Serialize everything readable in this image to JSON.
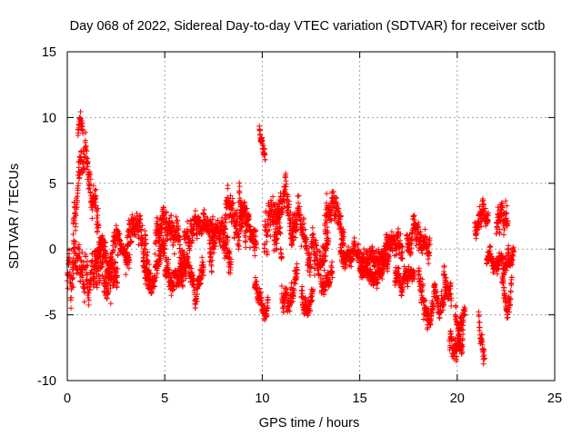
{
  "chart_data": {
    "type": "scatter",
    "title": "Day 068 of 2022, Sidereal Day-to-day VTEC variation (SDTVAR) for receiver sctb",
    "xlabel": "GPS time / hours",
    "ylabel": "SDTVAR / TECUs",
    "xlim": [
      0,
      25
    ],
    "ylim": [
      -10,
      15
    ],
    "xticks": [
      0,
      5,
      10,
      15,
      20,
      25
    ],
    "xtick_labels": [
      "0",
      "5",
      "10",
      "15",
      "20",
      "25"
    ],
    "yticks": [
      -10,
      -5,
      0,
      5,
      10,
      15
    ],
    "ytick_labels": [
      "-10",
      "-5",
      "0",
      "5",
      "10",
      "15"
    ],
    "grid": true,
    "marker": "+",
    "color": "#ff0000",
    "series": [
      {
        "name": "SDTVAR",
        "segments": [
          {
            "x0": 0.0,
            "x1": 0.35,
            "profile": [
              [
                0.0,
                -2.5
              ],
              [
                0.1,
                0.8
              ],
              [
                0.2,
                -3.4
              ],
              [
                0.35,
                1.5
              ]
            ],
            "spread": 2.2
          },
          {
            "x0": 0.3,
            "x1": 1.6,
            "profile": [
              [
                0.3,
                1.0
              ],
              [
                0.5,
                3.5
              ],
              [
                0.7,
                6.0
              ],
              [
                0.9,
                7.0
              ],
              [
                1.1,
                5.5
              ],
              [
                1.3,
                4.5
              ],
              [
                1.6,
                2.0
              ]
            ],
            "spread": 2.2
          },
          {
            "x0": 0.3,
            "x1": 2.6,
            "profile": [
              [
                0.3,
                -1.5
              ],
              [
                1.0,
                -1.6
              ],
              [
                1.5,
                -0.8
              ],
              [
                2.0,
                -1.8
              ],
              [
                2.6,
                -1.0
              ]
            ],
            "spread": 3.0
          },
          {
            "x0": 0.55,
            "x1": 0.8,
            "profile": [
              [
                0.55,
                8.6
              ],
              [
                0.65,
                10.2
              ],
              [
                0.8,
                9.0
              ]
            ],
            "spread": 1.0
          },
          {
            "x0": 1.4,
            "x1": 2.2,
            "profile": [
              [
                1.4,
                -1.0
              ],
              [
                1.8,
                0.8
              ],
              [
                2.2,
                -1.5
              ]
            ],
            "spread": 1.6
          },
          {
            "x0": 2.2,
            "x1": 3.2,
            "profile": [
              [
                2.2,
                -1.0
              ],
              [
                2.5,
                1.2
              ],
              [
                2.8,
                0.0
              ],
              [
                3.2,
                -1.0
              ]
            ],
            "spread": 1.4
          },
          {
            "x0": 3.0,
            "x1": 4.2,
            "profile": [
              [
                3.0,
                -1.0
              ],
              [
                3.4,
                2.0
              ],
              [
                3.8,
                0.5
              ],
              [
                4.2,
                -1.5
              ]
            ],
            "spread": 2.2
          },
          {
            "x0": 3.9,
            "x1": 5.0,
            "profile": [
              [
                3.9,
                -1.5
              ],
              [
                4.3,
                -2.8
              ],
              [
                4.6,
                -1.0
              ],
              [
                5.0,
                0.0
              ]
            ],
            "spread": 1.5
          },
          {
            "x0": 4.5,
            "x1": 6.0,
            "profile": [
              [
                4.5,
                0.0
              ],
              [
                5.0,
                2.0
              ],
              [
                5.5,
                1.0
              ],
              [
                6.0,
                -0.5
              ]
            ],
            "spread": 2.4
          },
          {
            "x0": 5.0,
            "x1": 7.0,
            "profile": [
              [
                5.0,
                -1.5
              ],
              [
                5.6,
                -2.5
              ],
              [
                6.2,
                -1.0
              ],
              [
                6.6,
                -3.5
              ],
              [
                7.0,
                -1.5
              ]
            ],
            "spread": 1.8
          },
          {
            "x0": 6.0,
            "x1": 7.6,
            "profile": [
              [
                6.0,
                0.5
              ],
              [
                6.5,
                1.5
              ],
              [
                7.0,
                2.0
              ],
              [
                7.6,
                1.0
              ]
            ],
            "spread": 2.0
          },
          {
            "x0": 7.3,
            "x1": 8.4,
            "profile": [
              [
                7.3,
                -0.5
              ],
              [
                7.7,
                1.5
              ],
              [
                8.1,
                0.5
              ],
              [
                8.4,
                -1.0
              ]
            ],
            "spread": 2.0
          },
          {
            "x0": 8.0,
            "x1": 9.2,
            "profile": [
              [
                8.0,
                2.0
              ],
              [
                8.4,
                3.8
              ],
              [
                8.8,
                1.0
              ],
              [
                9.2,
                2.0
              ]
            ],
            "spread": 2.6
          },
          {
            "x0": 8.8,
            "x1": 9.7,
            "profile": [
              [
                8.8,
                3.5
              ],
              [
                9.2,
                2.0
              ],
              [
                9.6,
                0.5
              ]
            ],
            "spread": 2.0
          },
          {
            "x0": 9.6,
            "x1": 10.3,
            "profile": [
              [
                9.6,
                -2.5
              ],
              [
                9.9,
                -3.5
              ],
              [
                10.2,
                -4.5
              ]
            ],
            "spread": 1.4
          },
          {
            "x0": 9.85,
            "x1": 10.15,
            "profile": [
              [
                9.85,
                9.3
              ],
              [
                9.95,
                8.2
              ],
              [
                10.15,
                7.2
              ]
            ],
            "spread": 0.8
          },
          {
            "x0": 10.1,
            "x1": 11.0,
            "profile": [
              [
                10.1,
                0.5
              ],
              [
                10.5,
                2.5
              ],
              [
                11.0,
                1.0
              ]
            ],
            "spread": 2.8
          },
          {
            "x0": 10.6,
            "x1": 11.6,
            "profile": [
              [
                10.6,
                0.5
              ],
              [
                10.9,
                3.0
              ],
              [
                11.2,
                4.0
              ],
              [
                11.6,
                1.0
              ]
            ],
            "spread": 2.2
          },
          {
            "x0": 11.0,
            "x1": 11.8,
            "profile": [
              [
                11.0,
                -3.0
              ],
              [
                11.3,
                -4.5
              ],
              [
                11.8,
                -2.0
              ]
            ],
            "spread": 1.6
          },
          {
            "x0": 11.5,
            "x1": 12.5,
            "profile": [
              [
                11.5,
                1.5
              ],
              [
                11.9,
                2.5
              ],
              [
                12.3,
                0.0
              ],
              [
                12.5,
                -1.0
              ]
            ],
            "spread": 2.0
          },
          {
            "x0": 12.0,
            "x1": 12.6,
            "profile": [
              [
                12.0,
                -3.5
              ],
              [
                12.3,
                -4.8
              ],
              [
                12.6,
                -3.0
              ]
            ],
            "spread": 1.5
          },
          {
            "x0": 12.5,
            "x1": 13.4,
            "profile": [
              [
                12.5,
                0.0
              ],
              [
                13.0,
                -1.0
              ],
              [
                13.4,
                0.5
              ]
            ],
            "spread": 2.2
          },
          {
            "x0": 13.2,
            "x1": 14.2,
            "profile": [
              [
                13.2,
                2.5
              ],
              [
                13.6,
                3.5
              ],
              [
                14.0,
                2.0
              ],
              [
                14.2,
                1.0
              ]
            ],
            "spread": 2.0
          },
          {
            "x0": 13.0,
            "x1": 13.6,
            "profile": [
              [
                13.0,
                -2.5
              ],
              [
                13.3,
                -3.0
              ],
              [
                13.6,
                -1.5
              ]
            ],
            "spread": 1.2
          },
          {
            "x0": 14.0,
            "x1": 16.5,
            "profile": [
              [
                14.0,
                -0.5
              ],
              [
                14.8,
                -0.3
              ],
              [
                15.6,
                -0.8
              ],
              [
                16.5,
                -1.0
              ]
            ],
            "spread": 1.4
          },
          {
            "x0": 15.0,
            "x1": 16.2,
            "profile": [
              [
                15.0,
                -1.5
              ],
              [
                15.6,
                -2.2
              ],
              [
                16.2,
                -1.8
              ]
            ],
            "spread": 1.0
          },
          {
            "x0": 16.2,
            "x1": 17.2,
            "profile": [
              [
                16.2,
                -0.5
              ],
              [
                16.6,
                0.8
              ],
              [
                17.2,
                0.0
              ]
            ],
            "spread": 1.6
          },
          {
            "x0": 16.8,
            "x1": 17.8,
            "profile": [
              [
                16.8,
                -2.0
              ],
              [
                17.2,
                -2.5
              ],
              [
                17.8,
                -1.5
              ]
            ],
            "spread": 1.2
          },
          {
            "x0": 17.4,
            "x1": 18.6,
            "profile": [
              [
                17.4,
                0.5
              ],
              [
                17.8,
                1.5
              ],
              [
                18.2,
                0.5
              ],
              [
                18.6,
                0.0
              ]
            ],
            "spread": 1.8
          },
          {
            "x0": 18.0,
            "x1": 18.8,
            "profile": [
              [
                18.0,
                -2.5
              ],
              [
                18.3,
                -4.5
              ],
              [
                18.6,
                -5.5
              ],
              [
                18.8,
                -3.5
              ]
            ],
            "spread": 1.8
          },
          {
            "x0": 18.8,
            "x1": 19.4,
            "profile": [
              [
                18.8,
                -3.0
              ],
              [
                19.1,
                -4.5
              ],
              [
                19.4,
                -3.0
              ]
            ],
            "spread": 1.2
          },
          {
            "x0": 19.3,
            "x1": 19.7,
            "profile": [
              [
                19.3,
                -2.0
              ],
              [
                19.5,
                -3.0
              ],
              [
                19.7,
                -4.0
              ]
            ],
            "spread": 1.4
          },
          {
            "x0": 19.6,
            "x1": 20.3,
            "profile": [
              [
                19.6,
                -6.5
              ],
              [
                19.8,
                -8.5
              ],
              [
                20.0,
                -8.0
              ],
              [
                20.3,
                -7.0
              ]
            ],
            "spread": 1.6
          },
          {
            "x0": 19.9,
            "x1": 20.4,
            "profile": [
              [
                19.9,
                -4.5
              ],
              [
                20.1,
                -6.0
              ],
              [
                20.4,
                -5.0
              ]
            ],
            "spread": 1.8
          },
          {
            "x0": 21.1,
            "x1": 21.4,
            "profile": [
              [
                21.1,
                -5.0
              ],
              [
                21.25,
                -7.0
              ],
              [
                21.4,
                -8.5
              ]
            ],
            "spread": 1.4
          },
          {
            "x0": 20.9,
            "x1": 21.6,
            "profile": [
              [
                20.9,
                1.5
              ],
              [
                21.2,
                3.0
              ],
              [
                21.5,
                2.0
              ]
            ],
            "spread": 1.6
          },
          {
            "x0": 21.5,
            "x1": 22.9,
            "profile": [
              [
                21.5,
                -0.5
              ],
              [
                21.9,
                -1.0
              ],
              [
                22.3,
                -0.8
              ],
              [
                22.9,
                -0.5
              ]
            ],
            "spread": 1.4
          },
          {
            "x0": 22.0,
            "x1": 22.6,
            "profile": [
              [
                22.0,
                1.0
              ],
              [
                22.3,
                3.0
              ],
              [
                22.6,
                1.5
              ]
            ],
            "spread": 2.0
          },
          {
            "x0": 22.3,
            "x1": 22.8,
            "profile": [
              [
                22.3,
                -2.0
              ],
              [
                22.5,
                -4.5
              ],
              [
                22.8,
                -3.0
              ]
            ],
            "spread": 1.6
          }
        ]
      }
    ]
  }
}
